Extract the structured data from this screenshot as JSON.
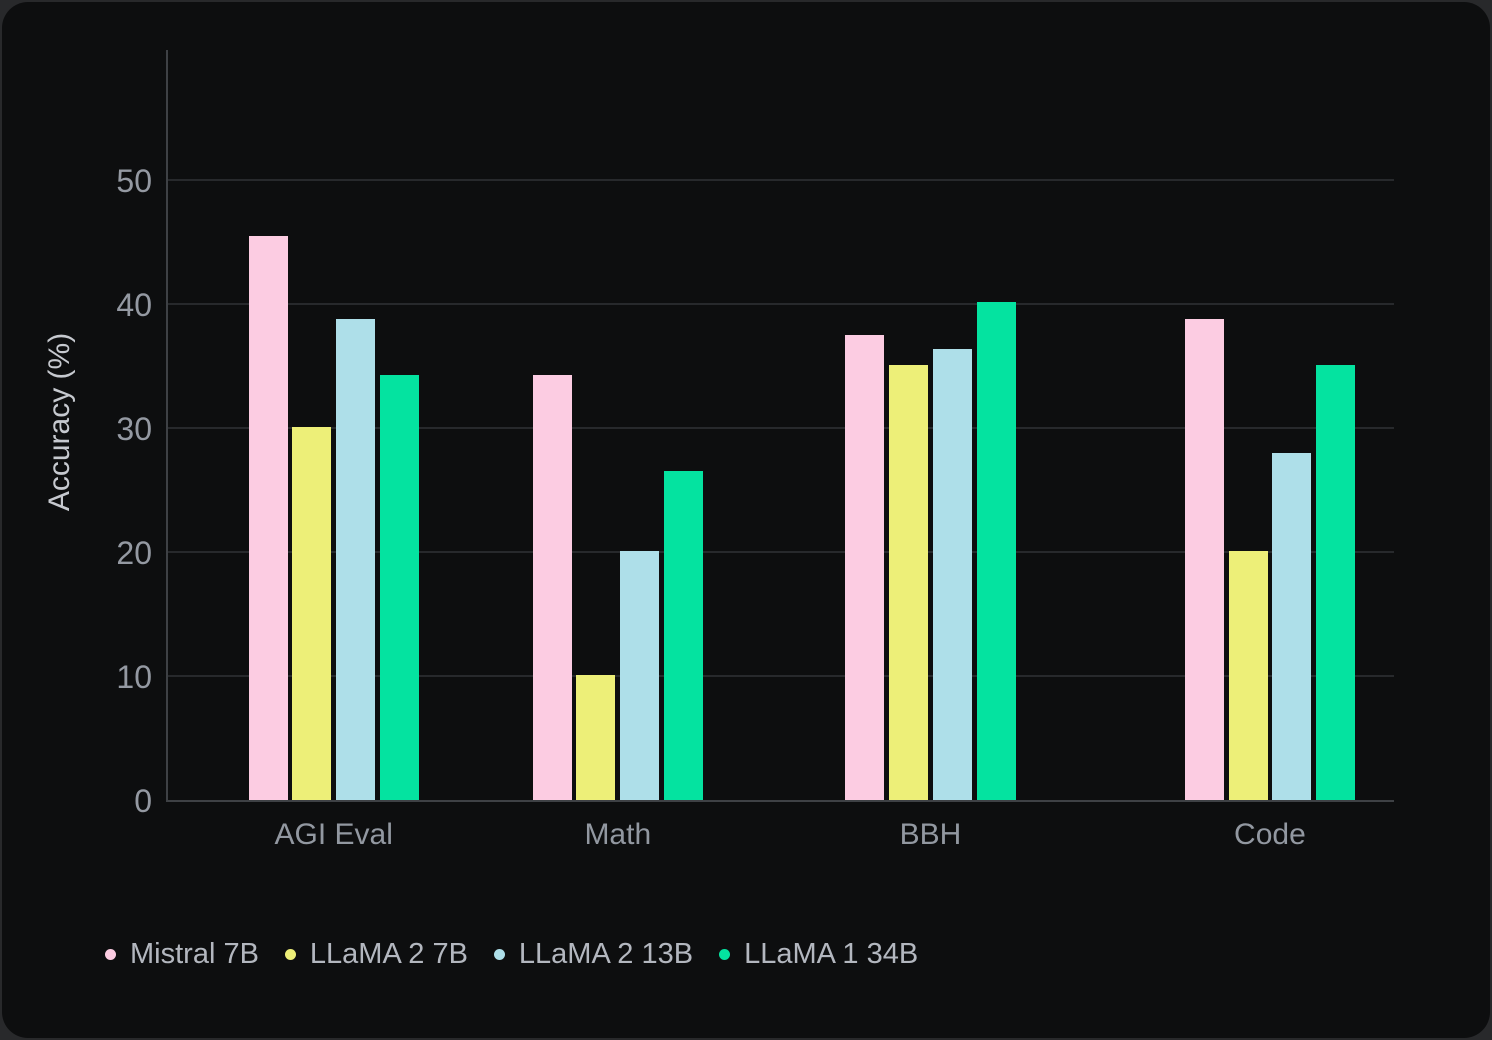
{
  "chart_data": {
    "type": "bar",
    "title": "",
    "xlabel": "",
    "ylabel": "Accuracy (%)",
    "categories": [
      "AGI Eval",
      "Math",
      "BBH",
      "Code"
    ],
    "series": [
      {
        "name": "Mistral 7B",
        "color": "#fccce2",
        "values": [
          45.5,
          34.3,
          37.5,
          38.8
        ]
      },
      {
        "name": "LLaMA 2 7B",
        "color": "#edef78",
        "values": [
          30.1,
          10.1,
          35.1,
          20.1
        ]
      },
      {
        "name": "LLaMA 2 13B",
        "color": "#aedfe9",
        "values": [
          38.8,
          20.1,
          36.4,
          28.0
        ]
      },
      {
        "name": "LLaMA 1 34B",
        "color": "#04e3a0",
        "values": [
          34.3,
          26.5,
          40.2,
          35.1
        ]
      }
    ],
    "y_ticks": [
      0,
      10,
      20,
      30,
      40,
      50
    ],
    "ylim": [
      0,
      60
    ],
    "grid": true,
    "legend_position": "bottom-left",
    "colors": {
      "background": "#0d0e0f",
      "page_background": "#28292b",
      "gridline": "#27292c",
      "axis_line": "#3e4145",
      "tick_text": "#9499a2",
      "category_text": "#9298a1",
      "axis_title_text": "#c6c9cf",
      "legend_text": "#b3b7bf"
    }
  }
}
